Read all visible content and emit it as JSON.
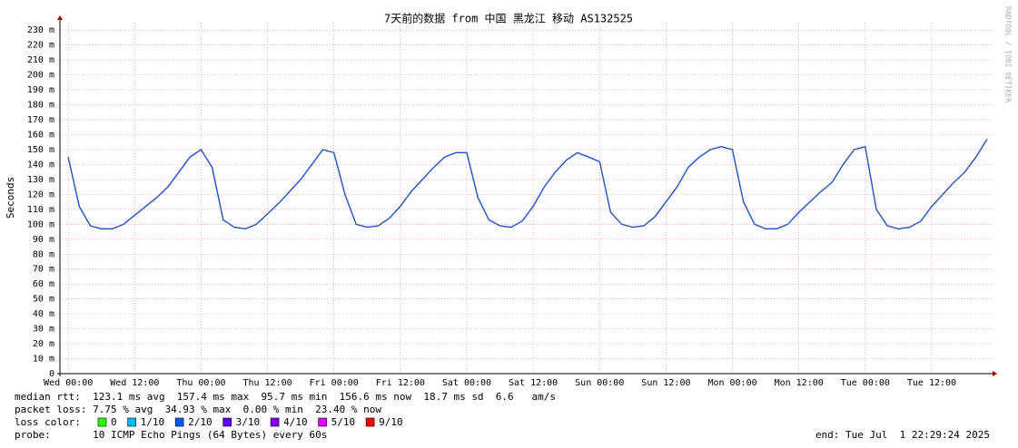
{
  "chart_data": {
    "type": "line",
    "title": "7天前的数据 from 中国 黑龙江 移动 AS132525",
    "y_label": "Seconds",
    "watermark": "RRDTOOL / TOBI OETIKER",
    "xlim": [
      -1.5,
      167
    ],
    "xticks": [
      {
        "value": 0,
        "label": "Wed 00:00"
      },
      {
        "value": 12,
        "label": "Wed 12:00"
      },
      {
        "value": 24,
        "label": "Thu 00:00"
      },
      {
        "value": 36,
        "label": "Thu 12:00"
      },
      {
        "value": 48,
        "label": "Fri 00:00"
      },
      {
        "value": 60,
        "label": "Fri 12:00"
      },
      {
        "value": 72,
        "label": "Sat 00:00"
      },
      {
        "value": 84,
        "label": "Sat 12:00"
      },
      {
        "value": 96,
        "label": "Sun 00:00"
      },
      {
        "value": 108,
        "label": "Sun 12:00"
      },
      {
        "value": 120,
        "label": "Mon 00:00"
      },
      {
        "value": 132,
        "label": "Mon 12:00"
      },
      {
        "value": 144,
        "label": "Tue 00:00"
      },
      {
        "value": 156,
        "label": "Tue 12:00"
      }
    ],
    "ylim": [
      0,
      235
    ],
    "yticks": [
      0,
      {
        "value": 10,
        "label": "10 m"
      },
      {
        "value": 20,
        "label": "20 m"
      },
      {
        "value": 30,
        "label": "30 m"
      },
      {
        "value": 40,
        "label": "40 m"
      },
      {
        "value": 50,
        "label": "50 m"
      },
      {
        "value": 60,
        "label": "60 m"
      },
      {
        "value": 70,
        "label": "70 m"
      },
      {
        "value": 80,
        "label": "80 m"
      },
      {
        "value": 90,
        "label": "90 m"
      },
      {
        "value": 100,
        "label": "100 m"
      },
      {
        "value": 110,
        "label": "110 m"
      },
      {
        "value": 120,
        "label": "120 m"
      },
      {
        "value": 130,
        "label": "130 m"
      },
      {
        "value": 140,
        "label": "140 m"
      },
      {
        "value": 150,
        "label": "150 m"
      },
      {
        "value": 160,
        "label": "160 m"
      },
      {
        "value": 170,
        "label": "170 m"
      },
      {
        "value": 180,
        "label": "180 m"
      },
      {
        "value": 190,
        "label": "190 m"
      },
      {
        "value": 200,
        "label": "200 m"
      },
      {
        "value": 210,
        "label": "210 m"
      },
      {
        "value": 220,
        "label": "220 m"
      },
      {
        "value": 230,
        "label": "230 m"
      }
    ],
    "grid": true,
    "series": [
      {
        "color": "#2050d0",
        "x": [
          0,
          2,
          4,
          6,
          8,
          10,
          12,
          14,
          16,
          18,
          20,
          22,
          24,
          26,
          28,
          30,
          32,
          34,
          36,
          38,
          40,
          42,
          44,
          46,
          48,
          50,
          52,
          54,
          56,
          58,
          60,
          62,
          64,
          66,
          68,
          70,
          72,
          74,
          76,
          78,
          80,
          82,
          84,
          86,
          88,
          90,
          92,
          94,
          96,
          98,
          100,
          102,
          104,
          106,
          108,
          110,
          112,
          114,
          116,
          118,
          120,
          122,
          124,
          126,
          128,
          130,
          132,
          134,
          136,
          138,
          140,
          142,
          144,
          146,
          148,
          150,
          152,
          154,
          156,
          158,
          160,
          162,
          164,
          166
        ],
        "values": [
          145,
          112,
          99,
          97,
          97,
          100,
          106,
          112,
          118,
          125,
          135,
          145,
          150,
          138,
          103,
          98,
          97,
          100,
          107,
          114,
          122,
          130,
          140,
          150,
          148,
          120,
          100,
          98,
          99,
          104,
          112,
          122,
          130,
          138,
          145,
          148,
          148,
          118,
          103,
          99,
          98,
          102,
          112,
          125,
          135,
          143,
          148,
          145,
          142,
          108,
          100,
          98,
          99,
          105,
          115,
          125,
          138,
          145,
          150,
          152,
          150,
          115,
          100,
          97,
          97,
          100,
          108,
          115,
          122,
          128,
          140,
          150,
          152,
          110,
          99,
          97,
          98,
          102,
          112,
          120,
          128,
          135,
          145,
          157
        ]
      }
    ],
    "stats": [
      "median rtt:  123.1 ms avg  157.4 ms max  95.7 ms min  156.6 ms now  18.7 ms sd  6.6   am/s",
      "packet loss: 7.75 % avg  34.93 % max  0.00 % min  23.40 % now"
    ],
    "loss_title": "loss color:",
    "loss_colors": [
      {
        "label": "0",
        "color": "#26ff00"
      },
      {
        "label": "1/10",
        "color": "#00b8ff"
      },
      {
        "label": "2/10",
        "color": "#0059ff"
      },
      {
        "label": "3/10",
        "color": "#5e00ff"
      },
      {
        "label": "4/10",
        "color": "#7e00ff"
      },
      {
        "label": "5/10",
        "color": "#dd00ff"
      },
      {
        "label": "9/10",
        "color": "#ff0000"
      }
    ],
    "probe": "probe:       10 ICMP Echo Pings (64 Bytes) every 60s",
    "end": "end: Tue Jul  1 22:29:24 2025"
  }
}
